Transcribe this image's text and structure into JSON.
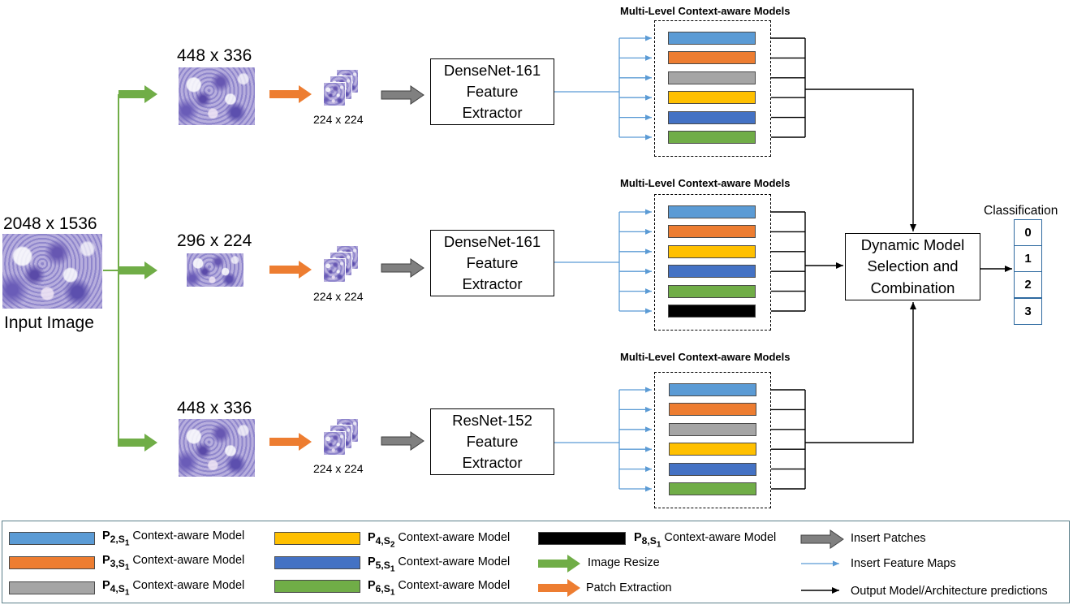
{
  "input": {
    "size": "2048 x 1536",
    "label": "Input Image"
  },
  "branches": [
    {
      "resize": "448 x 336",
      "patch": "224 x 224",
      "extractor": [
        "DenseNet-161",
        "Feature",
        "Extractor"
      ],
      "models_title": "Multi-Level Context-aware Models",
      "models": [
        "p2s1",
        "p3s1",
        "p4s1",
        "p4s2",
        "p5s1",
        "p6s1"
      ]
    },
    {
      "resize": "296 x 224",
      "patch": "224 x 224",
      "extractor": [
        "DenseNet-161",
        "Feature",
        "Extractor"
      ],
      "models_title": "Multi-Level Context-aware Models",
      "models": [
        "p2s1",
        "p3s1",
        "p4s2",
        "p5s1",
        "p6s1",
        "p8s1"
      ]
    },
    {
      "resize": "448 x 336",
      "patch": "224 x 224",
      "extractor": [
        "ResNet-152",
        "Feature",
        "Extractor"
      ],
      "models_title": "Multi-Level Context-aware Models",
      "models": [
        "p2s1",
        "p3s1",
        "p4s1",
        "p4s2",
        "p5s1",
        "p6s1"
      ]
    }
  ],
  "combiner": [
    "Dynamic Model",
    "Selection and",
    "Combination"
  ],
  "classification": {
    "title": "Classification",
    "classes": [
      "0",
      "1",
      "2",
      "3"
    ]
  },
  "model_colors": {
    "p2s1": "#5b9bd5",
    "p3s1": "#ed7d31",
    "p4s1": "#a5a5a5",
    "p4s2": "#ffc000",
    "p5s1": "#4472c4",
    "p6s1": "#70ad47",
    "p8s1": "#000000"
  },
  "legend": {
    "models": [
      {
        "key": "p2s1",
        "p": "P",
        "sub": "2,S",
        "subsub": "1",
        "suffix": " Context-aware Model"
      },
      {
        "key": "p3s1",
        "p": "P",
        "sub": "3,S",
        "subsub": "1",
        "suffix": " Context-aware Model"
      },
      {
        "key": "p4s1",
        "p": "P",
        "sub": "4,S",
        "subsub": "1",
        "suffix": " Context-aware Model"
      },
      {
        "key": "p4s2",
        "p": "P",
        "sub": "4,S",
        "subsub": "2",
        "suffix": " Context-aware Model"
      },
      {
        "key": "p5s1",
        "p": "P",
        "sub": "5,S",
        "subsub": "1",
        "suffix": " Context-aware Model"
      },
      {
        "key": "p6s1",
        "p": "P",
        "sub": "6,S",
        "subsub": "1",
        "suffix": " Context-aware Model"
      },
      {
        "key": "p8s1",
        "p": "P",
        "sub": "8,S",
        "subsub": "1",
        "suffix": " Context-aware Model"
      }
    ],
    "image_resize": "Image Resize",
    "patch_extraction": "Patch Extraction",
    "insert_patches": "Insert Patches",
    "insert_feature_maps": "Insert Feature Maps",
    "output_predictions": "Output Model/Architecture predictions"
  },
  "arrow_colors": {
    "resize": "#70ad47",
    "patch": "#ed7d31",
    "insert_patches": "#808080",
    "feature_maps": "#5b9bd5",
    "output": "#000000"
  }
}
